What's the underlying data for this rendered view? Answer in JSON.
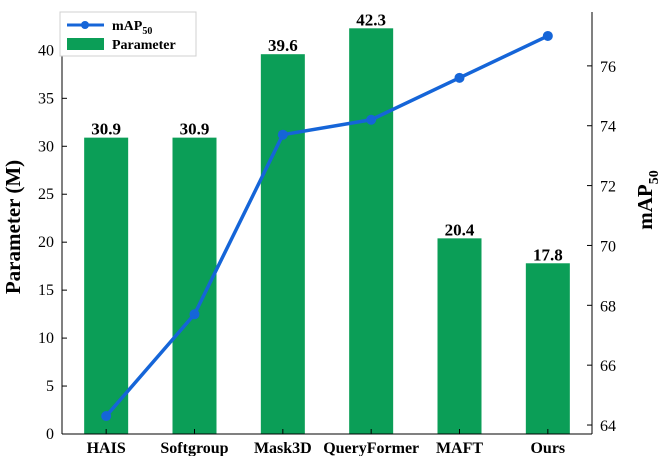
{
  "chart_data": {
    "type": "bar+line",
    "categories": [
      "HAIS",
      "Softgroup",
      "Mask3D",
      "QueryFormer",
      "MAFT",
      "Ours"
    ],
    "series": [
      {
        "name": "Parameter",
        "type": "bar",
        "axis": "left",
        "color": "#0b9e57",
        "values": [
          30.9,
          30.9,
          39.6,
          42.3,
          20.4,
          17.8
        ],
        "labels": [
          "30.9",
          "30.9",
          "39.6",
          "42.3",
          "20.4",
          "17.8"
        ]
      },
      {
        "name": "mAP",
        "name_subscript": "50",
        "type": "line",
        "axis": "right",
        "color": "#1565d8",
        "values": [
          64.3,
          67.7,
          73.7,
          74.2,
          75.6,
          77.0
        ]
      }
    ],
    "left_axis": {
      "label": "Parameter (M)",
      "ylim": [
        0,
        44
      ],
      "ticks": [
        0,
        5,
        10,
        15,
        20,
        25,
        30,
        35,
        40
      ],
      "tick_labels": [
        "0",
        "5",
        "10",
        "15",
        "20",
        "25",
        "30",
        "35",
        "40"
      ]
    },
    "right_axis": {
      "label": "mAP",
      "label_subscript": "50",
      "ylim": [
        63.7,
        77.8
      ],
      "ticks": [
        64,
        66,
        68,
        70,
        72,
        74,
        76
      ],
      "tick_labels": [
        "64",
        "66",
        "68",
        "70",
        "72",
        "74",
        "76"
      ]
    },
    "legend": {
      "position": "top-left",
      "entries": [
        {
          "name": "mAP",
          "subscript": "50"
        },
        {
          "name": "Parameter"
        }
      ]
    },
    "grid": false
  }
}
